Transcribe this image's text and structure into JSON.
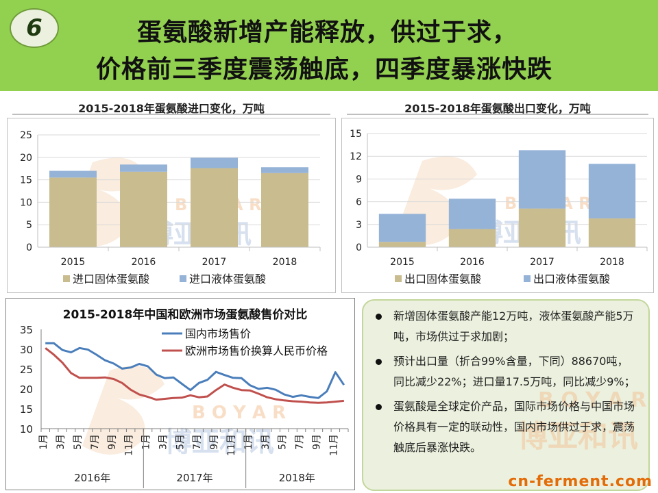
{
  "slide": {
    "number": "6",
    "title_line1": "蛋氨酸新增产能释放，供过于求，",
    "title_line2": "价格前三季度震荡触底，四季度暴涨快跌"
  },
  "watermark": {
    "en": "B O Y A R",
    "cn": "博亚和讯"
  },
  "site": {
    "prefix": "cn-",
    "main": "ferment",
    "suffix": ".com"
  },
  "colors": {
    "header": "#92d050",
    "solid": "#c9bc8f",
    "liquid": "#95b3d7",
    "domestic": "#4a7ebb",
    "europe": "#c0504d"
  },
  "chart_data": [
    {
      "type": "bar",
      "stacked": true,
      "title": "2015-2018年蛋氨酸进口变化，万吨",
      "categories": [
        "2015",
        "2016",
        "2017",
        "2018"
      ],
      "series": [
        {
          "name": "进口固体蛋氨酸",
          "values": [
            15.5,
            16.8,
            17.6,
            16.5
          ]
        },
        {
          "name": "进口液体蛋氨酸",
          "values": [
            1.5,
            1.6,
            2.3,
            1.3
          ]
        }
      ],
      "ylim": [
        0,
        25
      ],
      "yticks": [
        0,
        5,
        10,
        15,
        20,
        25
      ]
    },
    {
      "type": "bar",
      "stacked": true,
      "title": "2015-2018年蛋氨酸出口变化，万吨",
      "categories": [
        "2015",
        "2016",
        "2017",
        "2018"
      ],
      "series": [
        {
          "name": "出口固体蛋氨酸",
          "values": [
            0.7,
            2.4,
            5.1,
            3.8
          ]
        },
        {
          "name": "出口液体蛋氨酸",
          "values": [
            3.7,
            4.0,
            7.7,
            7.2
          ]
        }
      ],
      "ylim": [
        0,
        15
      ],
      "yticks": [
        0,
        3,
        6,
        9,
        12,
        15
      ]
    },
    {
      "type": "line",
      "title": "2015-2018年中国和欧洲市场蛋氨酸售价对比",
      "ylim": [
        10,
        35
      ],
      "yticks": [
        10,
        15,
        20,
        25,
        30,
        35
      ],
      "x_tick_labels": [
        "1月",
        "3月",
        "5月",
        "7月",
        "9月",
        "11月",
        "1月",
        "3月",
        "5月",
        "7月",
        "9月",
        "11月",
        "1月",
        "3月",
        "5月",
        "7月",
        "9月",
        "11月"
      ],
      "x_group_labels": [
        "2016年",
        "2017年",
        "2018年"
      ],
      "series": [
        {
          "name": "国内市场售价",
          "values": [
            31.5,
            31.5,
            29.8,
            29.2,
            30.3,
            29.9,
            28.6,
            27.2,
            26.4,
            25.1,
            25.4,
            26.3,
            25.7,
            23.6,
            22.7,
            22.9,
            21.3,
            19.7,
            21.5,
            22.3,
            24.3,
            23.5,
            22.8,
            22.7,
            20.9,
            20.0,
            20.3,
            19.8,
            18.6,
            18.0,
            18.4,
            18.0,
            17.7,
            19.4,
            24.2,
            21.0
          ]
        },
        {
          "name": "欧洲市场售价换算人民币价格",
          "values": [
            30.3,
            28.6,
            26.6,
            24.0,
            22.8,
            22.8,
            22.8,
            22.9,
            22.5,
            21.5,
            19.8,
            18.6,
            18.0,
            17.3,
            17.5,
            17.7,
            17.8,
            18.4,
            17.9,
            18.1,
            19.7,
            21.1,
            20.3,
            19.7,
            19.6,
            18.8,
            17.9,
            17.4,
            17.1,
            16.9,
            16.8,
            16.6,
            16.5,
            16.6,
            16.8,
            17.0
          ]
        }
      ]
    }
  ],
  "bullets": [
    "新增固体蛋氨酸产能12万吨，液体蛋氨酸产能5万吨，市场供过于求加剧；",
    "预计出口量（折合99%含量，下同）88670吨，同比减少22%；进口量17.5万吨，同比减少9%；",
    "蛋氨酸是全球定价产品，国际市场价格与中国市场价格具有一定的联动性，国内市场供过于求，震荡触底后暴涨快跌。"
  ]
}
